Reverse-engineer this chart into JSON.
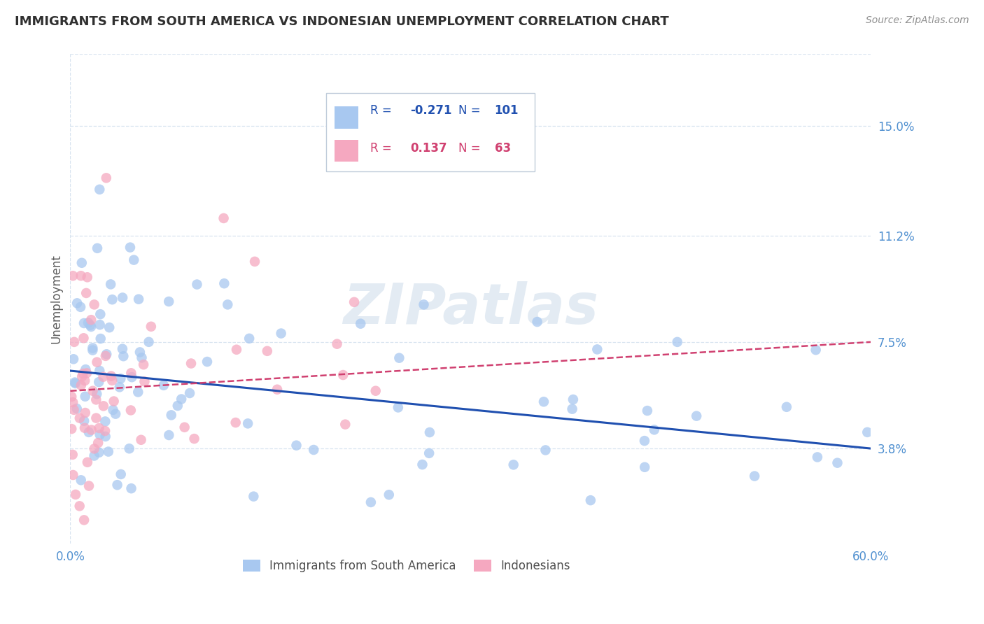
{
  "title": "IMMIGRANTS FROM SOUTH AMERICA VS INDONESIAN UNEMPLOYMENT CORRELATION CHART",
  "source": "Source: ZipAtlas.com",
  "ylabel": "Unemployment",
  "watermark": "ZIPatlas",
  "xlim": [
    0.0,
    0.6
  ],
  "ylim": [
    0.005,
    0.175
  ],
  "yticks": [
    0.038,
    0.075,
    0.112,
    0.15
  ],
  "ytick_labels": [
    "3.8%",
    "7.5%",
    "11.2%",
    "15.0%"
  ],
  "xticks": [
    0.0,
    0.12,
    0.24,
    0.36,
    0.48,
    0.6
  ],
  "xtick_labels": [
    "0.0%",
    "",
    "",
    "",
    "",
    "60.0%"
  ],
  "blue_color": "#A8C8F0",
  "pink_color": "#F5A8C0",
  "blue_line_color": "#2050B0",
  "pink_line_color": "#D04070",
  "axis_color": "#5090D0",
  "grid_color": "#D8E4F0",
  "title_color": "#303030",
  "source_color": "#909090",
  "legend_R_blue": "-0.271",
  "legend_N_blue": "101",
  "legend_R_pink": "0.137",
  "legend_N_pink": "63"
}
